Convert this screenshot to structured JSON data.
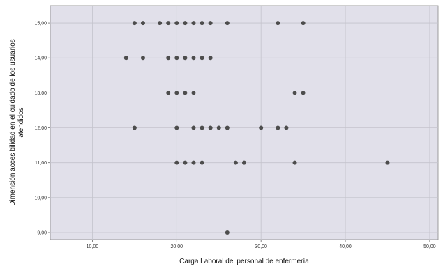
{
  "chart_data": {
    "type": "scatter",
    "title": "",
    "xlabel": "Carga Laboral del personal de enfermería",
    "ylabel": [
      "Dimensión accesibilidad en el cuidado de los usuarios",
      "atendidos"
    ],
    "xlim": [
      5,
      51
    ],
    "ylim": [
      8.8,
      15.5
    ],
    "x_ticks": [
      10,
      20,
      30,
      40,
      50
    ],
    "x_tick_labels": [
      "10,00",
      "20,00",
      "30,00",
      "40,00",
      "50,00"
    ],
    "y_ticks": [
      9,
      10,
      11,
      12,
      13,
      14,
      15
    ],
    "y_tick_labels": [
      "9,00",
      "10,00",
      "11,00",
      "12,00",
      "13,00",
      "14,00",
      "15,00"
    ],
    "grid": true,
    "plot_background": "#e1e0ea",
    "point_color": "#4d4d4d",
    "points": [
      {
        "x": 15,
        "y": 15
      },
      {
        "x": 16,
        "y": 15
      },
      {
        "x": 18,
        "y": 15
      },
      {
        "x": 19,
        "y": 15
      },
      {
        "x": 20,
        "y": 15
      },
      {
        "x": 21,
        "y": 15
      },
      {
        "x": 22,
        "y": 15
      },
      {
        "x": 23,
        "y": 15
      },
      {
        "x": 24,
        "y": 15
      },
      {
        "x": 26,
        "y": 15
      },
      {
        "x": 32,
        "y": 15
      },
      {
        "x": 35,
        "y": 15
      },
      {
        "x": 14,
        "y": 14
      },
      {
        "x": 16,
        "y": 14
      },
      {
        "x": 19,
        "y": 14
      },
      {
        "x": 20,
        "y": 14
      },
      {
        "x": 21,
        "y": 14
      },
      {
        "x": 22,
        "y": 14
      },
      {
        "x": 23,
        "y": 14
      },
      {
        "x": 24,
        "y": 14
      },
      {
        "x": 19,
        "y": 13
      },
      {
        "x": 20,
        "y": 13
      },
      {
        "x": 21,
        "y": 13
      },
      {
        "x": 22,
        "y": 13
      },
      {
        "x": 34,
        "y": 13
      },
      {
        "x": 35,
        "y": 13
      },
      {
        "x": 15,
        "y": 12
      },
      {
        "x": 20,
        "y": 12
      },
      {
        "x": 22,
        "y": 12
      },
      {
        "x": 23,
        "y": 12
      },
      {
        "x": 24,
        "y": 12
      },
      {
        "x": 25,
        "y": 12
      },
      {
        "x": 26,
        "y": 12
      },
      {
        "x": 30,
        "y": 12
      },
      {
        "x": 32,
        "y": 12
      },
      {
        "x": 33,
        "y": 12
      },
      {
        "x": 20,
        "y": 11
      },
      {
        "x": 21,
        "y": 11
      },
      {
        "x": 22,
        "y": 11
      },
      {
        "x": 23,
        "y": 11
      },
      {
        "x": 27,
        "y": 11
      },
      {
        "x": 28,
        "y": 11
      },
      {
        "x": 34,
        "y": 11
      },
      {
        "x": 45,
        "y": 11
      },
      {
        "x": 26,
        "y": 9
      }
    ]
  }
}
